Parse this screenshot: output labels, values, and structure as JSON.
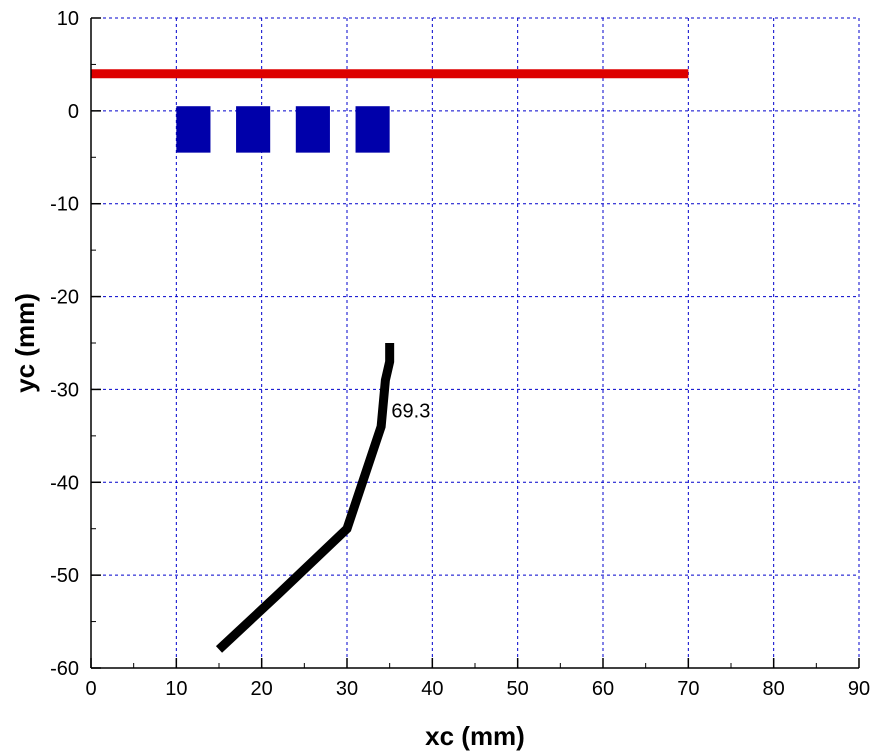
{
  "chart_data": {
    "type": "line",
    "title": "",
    "xlabel": "xc (mm)",
    "ylabel": "yc (mm)",
    "xlim": [
      0,
      90
    ],
    "ylim": [
      -60,
      10
    ],
    "x_ticks": [
      0,
      10,
      20,
      30,
      40,
      50,
      60,
      70,
      80,
      90
    ],
    "y_ticks": [
      10,
      0,
      -10,
      -20,
      -30,
      -40,
      -50,
      -60
    ],
    "grid": true,
    "colors": {
      "grid": "#0000cc",
      "bar": "#dd0000",
      "blocks": "#0000aa",
      "curve": "#000000"
    },
    "bar_line": {
      "x": [
        0,
        70
      ],
      "y": 4
    },
    "blocks": [
      {
        "x": [
          10,
          14
        ],
        "y": [
          -4.5,
          0.5
        ]
      },
      {
        "x": [
          17,
          21
        ],
        "y": [
          -4.5,
          0.5
        ]
      },
      {
        "x": [
          24,
          28
        ],
        "y": [
          -4.5,
          0.5
        ]
      },
      {
        "x": [
          31,
          35
        ],
        "y": [
          -4.5,
          0.5
        ]
      }
    ],
    "series": [
      {
        "x": [
          15,
          22,
          30,
          34,
          34.5,
          35,
          35
        ],
        "y": [
          -58,
          -52,
          -45,
          -34,
          -29,
          -27,
          -25
        ]
      }
    ],
    "annotations": [
      {
        "text": "69.3",
        "x": 34.5,
        "y": -33
      }
    ]
  }
}
